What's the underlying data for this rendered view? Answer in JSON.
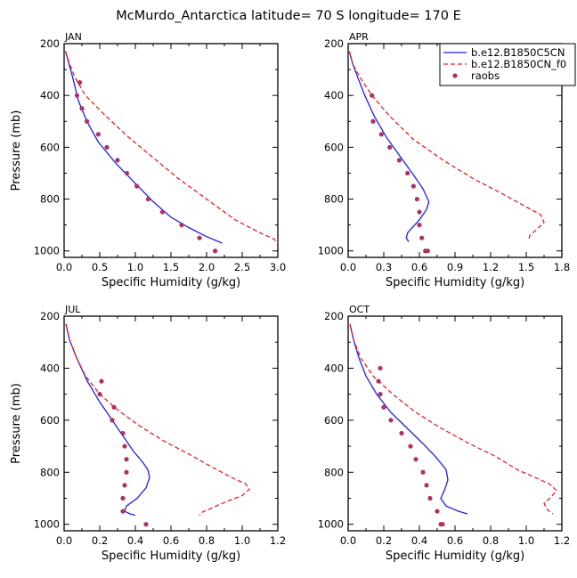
{
  "title": "McMurdo_Antarctica  latitude= 70 S longitude= 170 E",
  "colors": {
    "model_a": "#1f1fe6",
    "model_b": "#e61f1f",
    "obs": "#b03060"
  },
  "legend": {
    "labels": [
      "b.e12.B1850C5CN",
      "b.e12.B1850CN_f0",
      "raobs"
    ],
    "placement": "top-right of APR panel"
  },
  "chart_data": [
    {
      "type": "line",
      "panel": "JAN",
      "xlabel": "Specific Humidity (g/kg)",
      "ylabel": "Pressure (mb)",
      "xlim": [
        0,
        3.0
      ],
      "ylim": [
        1025,
        200
      ],
      "y_inverted": true,
      "xticks": [
        0,
        0.5,
        1.0,
        1.5,
        2.0,
        2.5,
        3.0
      ],
      "xtick_labels": [
        "0.0",
        "0.5",
        "1.0",
        "1.5",
        "2.0",
        "2.5",
        "3.0"
      ],
      "yticks": [
        200,
        400,
        600,
        800,
        1000
      ],
      "series": [
        {
          "name": "b.e12.B1850C5CN",
          "style": "solid",
          "color": "#1f1fe6",
          "x": [
            0.02,
            0.05,
            0.12,
            0.2,
            0.32,
            0.48,
            0.72,
            1.0,
            1.25,
            1.5,
            1.75,
            2.0,
            2.22
          ],
          "y": [
            230,
            260,
            330,
            420,
            500,
            580,
            660,
            740,
            810,
            870,
            910,
            945,
            970
          ]
        },
        {
          "name": "b.e12.B1850CN_f0",
          "style": "dashed",
          "color": "#e61f1f",
          "x": [
            0.02,
            0.06,
            0.15,
            0.3,
            0.55,
            0.9,
            1.25,
            1.6,
            2.0,
            2.4,
            2.75,
            2.95,
            3.0
          ],
          "y": [
            230,
            265,
            330,
            400,
            470,
            560,
            640,
            720,
            800,
            880,
            930,
            955,
            970
          ]
        },
        {
          "name": "raobs",
          "style": "markers",
          "color": "#b03060",
          "x": [
            0.22,
            0.18,
            0.25,
            0.32,
            0.48,
            0.6,
            0.75,
            0.88,
            1.02,
            1.18,
            1.38,
            1.65,
            1.9,
            2.12
          ],
          "y": [
            350,
            400,
            450,
            500,
            550,
            600,
            650,
            700,
            750,
            800,
            850,
            900,
            950,
            1000
          ]
        }
      ]
    },
    {
      "type": "line",
      "panel": "APR",
      "xlabel": "Specific Humidity (g/kg)",
      "ylabel": "",
      "xlim": [
        0,
        1.8
      ],
      "ylim": [
        1025,
        200
      ],
      "y_inverted": true,
      "xticks": [
        0,
        0.3,
        0.6,
        0.9,
        1.2,
        1.5,
        1.8
      ],
      "xtick_labels": [
        "0.0",
        "0.3",
        "0.6",
        "0.9",
        "1.2",
        "1.5",
        "1.8"
      ],
      "yticks": [
        200,
        400,
        600,
        800,
        1000
      ],
      "series": [
        {
          "name": "b.e12.B1850C5CN",
          "style": "solid",
          "color": "#1f1fe6",
          "x": [
            0.01,
            0.04,
            0.08,
            0.14,
            0.22,
            0.32,
            0.43,
            0.54,
            0.63,
            0.68,
            0.66,
            0.6,
            0.54,
            0.5,
            0.49,
            0.51
          ],
          "y": [
            230,
            280,
            330,
            400,
            480,
            560,
            630,
            700,
            760,
            810,
            840,
            880,
            910,
            930,
            950,
            965
          ]
        },
        {
          "name": "b.e12.B1850CN_f0",
          "style": "dashed",
          "color": "#e61f1f",
          "x": [
            0.01,
            0.04,
            0.1,
            0.2,
            0.35,
            0.55,
            0.8,
            1.05,
            1.3,
            1.5,
            1.62,
            1.65,
            1.58,
            1.53,
            1.52
          ],
          "y": [
            230,
            280,
            330,
            400,
            480,
            570,
            650,
            720,
            780,
            830,
            860,
            890,
            920,
            940,
            960
          ]
        },
        {
          "name": "raobs",
          "style": "markers",
          "color": "#b03060",
          "x": [
            0.2,
            0.21,
            0.28,
            0.35,
            0.43,
            0.5,
            0.55,
            0.58,
            0.6,
            0.6,
            0.62,
            0.65,
            0.67
          ],
          "y": [
            400,
            500,
            550,
            600,
            650,
            700,
            750,
            800,
            850,
            900,
            950,
            1000,
            1000
          ]
        }
      ]
    },
    {
      "type": "line",
      "panel": "JUL",
      "xlabel": "Specific Humidity (g/kg)",
      "ylabel": "Pressure (mb)",
      "xlim": [
        0,
        1.2
      ],
      "ylim": [
        1025,
        200
      ],
      "y_inverted": true,
      "xticks": [
        0,
        0.2,
        0.4,
        0.6,
        0.8,
        1.0,
        1.2
      ],
      "xtick_labels": [
        "0.0",
        "0.2",
        "0.4",
        "0.6",
        "0.8",
        "1.0",
        "1.2"
      ],
      "yticks": [
        200,
        400,
        600,
        800,
        1000
      ],
      "series": [
        {
          "name": "b.e12.B1850C5CN",
          "style": "solid",
          "color": "#1f1fe6",
          "x": [
            0.01,
            0.03,
            0.07,
            0.13,
            0.2,
            0.27,
            0.33,
            0.39,
            0.44,
            0.47,
            0.48,
            0.46,
            0.41,
            0.35,
            0.34,
            0.37,
            0.4
          ],
          "y": [
            230,
            290,
            360,
            450,
            530,
            600,
            660,
            720,
            760,
            790,
            820,
            860,
            900,
            930,
            950,
            960,
            965
          ]
        },
        {
          "name": "b.e12.B1850CN_f0",
          "style": "dashed",
          "color": "#e61f1f",
          "x": [
            0.01,
            0.03,
            0.07,
            0.12,
            0.2,
            0.3,
            0.42,
            0.56,
            0.7,
            0.83,
            0.94,
            1.02,
            1.04,
            1.0,
            0.92,
            0.82,
            0.77,
            0.76
          ],
          "y": [
            230,
            290,
            360,
            430,
            500,
            560,
            620,
            680,
            730,
            780,
            820,
            845,
            865,
            890,
            910,
            940,
            955,
            965
          ]
        },
        {
          "name": "raobs",
          "style": "markers",
          "color": "#b03060",
          "x": [
            0.21,
            0.2,
            0.28,
            0.27,
            0.33,
            0.34,
            0.35,
            0.35,
            0.34,
            0.33,
            0.33,
            0.46
          ],
          "y": [
            450,
            500,
            550,
            600,
            650,
            700,
            750,
            800,
            850,
            900,
            950,
            1000
          ]
        }
      ]
    },
    {
      "type": "line",
      "panel": "OCT",
      "xlabel": "Specific Humidity (g/kg)",
      "ylabel": "",
      "xlim": [
        0,
        1.2
      ],
      "ylim": [
        1025,
        200
      ],
      "y_inverted": true,
      "xticks": [
        0,
        0.2,
        0.4,
        0.6,
        0.8,
        1.0,
        1.2
      ],
      "xtick_labels": [
        "0.0",
        "0.2",
        "0.4",
        "0.6",
        "0.8",
        "1.0",
        "1.2"
      ],
      "yticks": [
        200,
        400,
        600,
        800,
        1000
      ],
      "series": [
        {
          "name": "b.e12.B1850C5CN",
          "style": "solid",
          "color": "#1f1fe6",
          "x": [
            0.01,
            0.03,
            0.06,
            0.1,
            0.16,
            0.24,
            0.33,
            0.42,
            0.49,
            0.55,
            0.56,
            0.54,
            0.52,
            0.55,
            0.62,
            0.67
          ],
          "y": [
            230,
            290,
            360,
            430,
            500,
            570,
            630,
            690,
            740,
            790,
            830,
            870,
            900,
            930,
            950,
            960
          ]
        },
        {
          "name": "b.e12.B1850CN_f0",
          "style": "dashed",
          "color": "#e61f1f",
          "x": [
            0.01,
            0.03,
            0.07,
            0.14,
            0.25,
            0.38,
            0.52,
            0.68,
            0.83,
            0.95,
            1.05,
            1.13,
            1.17,
            1.14,
            1.1,
            1.12,
            1.15
          ],
          "y": [
            230,
            290,
            360,
            430,
            500,
            570,
            630,
            690,
            740,
            790,
            820,
            845,
            870,
            895,
            920,
            945,
            960
          ]
        },
        {
          "name": "raobs",
          "style": "markers",
          "color": "#b03060",
          "x": [
            0.18,
            0.17,
            0.18,
            0.2,
            0.24,
            0.3,
            0.35,
            0.38,
            0.42,
            0.44,
            0.46,
            0.5,
            0.53,
            0.52
          ],
          "y": [
            400,
            450,
            500,
            550,
            600,
            650,
            700,
            750,
            800,
            850,
            900,
            950,
            1000,
            1000
          ]
        }
      ]
    }
  ]
}
